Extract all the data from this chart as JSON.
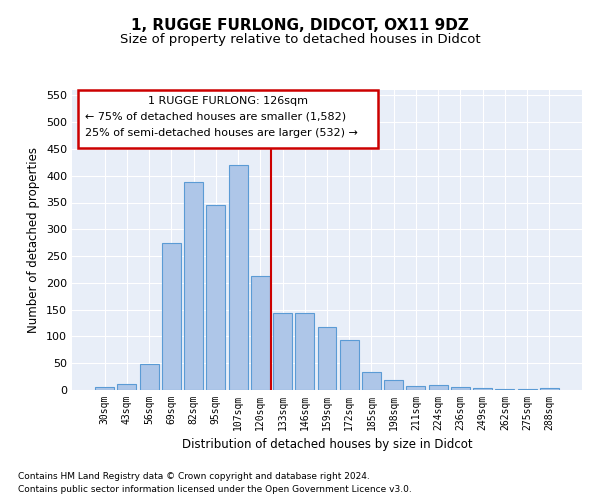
{
  "title": "1, RUGGE FURLONG, DIDCOT, OX11 9DZ",
  "subtitle": "Size of property relative to detached houses in Didcot",
  "xlabel": "Distribution of detached houses by size in Didcot",
  "ylabel": "Number of detached properties",
  "categories": [
    "30sqm",
    "43sqm",
    "56sqm",
    "69sqm",
    "82sqm",
    "95sqm",
    "107sqm",
    "120sqm",
    "133sqm",
    "146sqm",
    "159sqm",
    "172sqm",
    "185sqm",
    "198sqm",
    "211sqm",
    "224sqm",
    "236sqm",
    "249sqm",
    "262sqm",
    "275sqm",
    "288sqm"
  ],
  "values": [
    5,
    11,
    49,
    275,
    388,
    345,
    420,
    212,
    144,
    144,
    117,
    93,
    34,
    19,
    8,
    10,
    5,
    4,
    1,
    1,
    3
  ],
  "bar_color": "#aec6e8",
  "bar_edge_color": "#5b9bd5",
  "vline_x": 7.5,
  "vline_color": "#cc0000",
  "annotation_title": "1 RUGGE FURLONG: 126sqm",
  "annotation_line1": "← 75% of detached houses are smaller (1,582)",
  "annotation_line2": "25% of semi-detached houses are larger (532) →",
  "annotation_box_color": "#cc0000",
  "ylim": [
    0,
    560
  ],
  "yticks": [
    0,
    50,
    100,
    150,
    200,
    250,
    300,
    350,
    400,
    450,
    500,
    550
  ],
  "footnote1": "Contains HM Land Registry data © Crown copyright and database right 2024.",
  "footnote2": "Contains public sector information licensed under the Open Government Licence v3.0.",
  "bg_color": "#e8eef8",
  "title_fontsize": 11,
  "subtitle_fontsize": 9.5
}
